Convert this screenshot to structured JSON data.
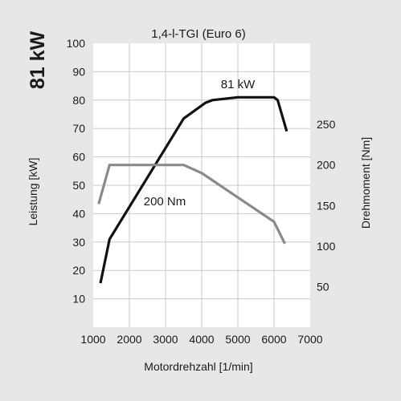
{
  "chart_data": {
    "type": "line",
    "title": "1,4-l-TGI (Euro 6)",
    "side_label": "81 kW",
    "xlabel": "Motordrehzahl [1/min]",
    "ylabel_left": "Leistung [kW]",
    "ylabel_right": "Drehmoment [Nm]",
    "xlim": [
      1000,
      7000
    ],
    "ylim_left": [
      0,
      100
    ],
    "ylim_right": [
      0,
      350
    ],
    "x_ticks": [
      1000,
      2000,
      3000,
      4000,
      5000,
      6000,
      7000
    ],
    "y_left_ticks": [
      10,
      20,
      30,
      40,
      50,
      60,
      70,
      80,
      90,
      100
    ],
    "y_right_ticks": [
      50,
      100,
      150,
      200,
      250
    ],
    "grid": true,
    "colors": {
      "background": "#e6e7e8",
      "plot_area": "#ffffff",
      "grid": "#c8c9cb",
      "power": "#111111",
      "torque": "#8a8a8a"
    },
    "series": [
      {
        "name": "81 kW",
        "axis": "left",
        "x": [
          1200,
          1450,
          3500,
          4100,
          4300,
          5000,
          6000,
          6100,
          6350
        ],
        "y": [
          15.5,
          31,
          73.5,
          79,
          80,
          81,
          81,
          80,
          69
        ]
      },
      {
        "name": "200 Nm",
        "axis": "right",
        "x": [
          1150,
          1450,
          3500,
          4000,
          5000,
          6000,
          6300
        ],
        "y": [
          152,
          200,
          200,
          190,
          160,
          130,
          103
        ]
      }
    ]
  }
}
